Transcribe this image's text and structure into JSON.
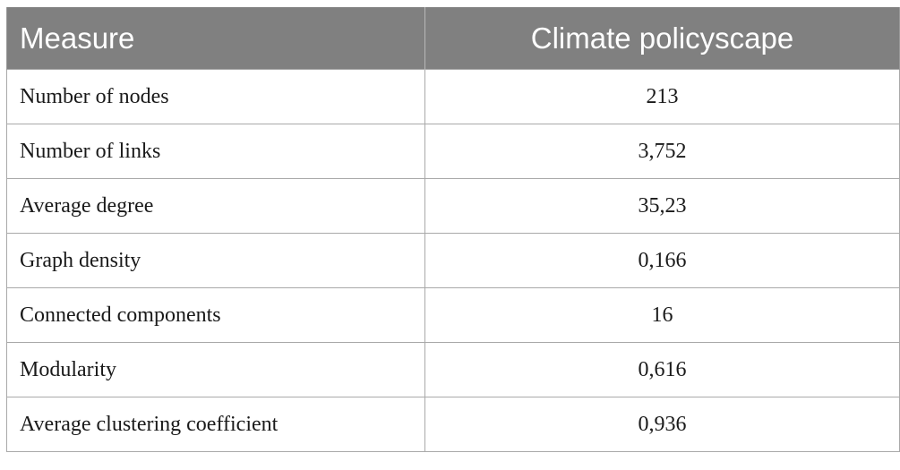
{
  "table": {
    "headers": [
      "Measure",
      "Climate policyscape"
    ],
    "rows": [
      {
        "measure": "Number of nodes",
        "value": "213"
      },
      {
        "measure": "Number of links",
        "value": "3,752"
      },
      {
        "measure": "Average degree",
        "value": "35,23"
      },
      {
        "measure": "Graph density",
        "value": "0,166"
      },
      {
        "measure": "Connected components",
        "value": "16"
      },
      {
        "measure": "Modularity",
        "value": "0,616"
      },
      {
        "measure": "Average clustering coefficient",
        "value": "0,936"
      }
    ]
  },
  "colors": {
    "header_background": "#808080",
    "header_text": "#ffffff",
    "border": "#a9a9a9"
  }
}
